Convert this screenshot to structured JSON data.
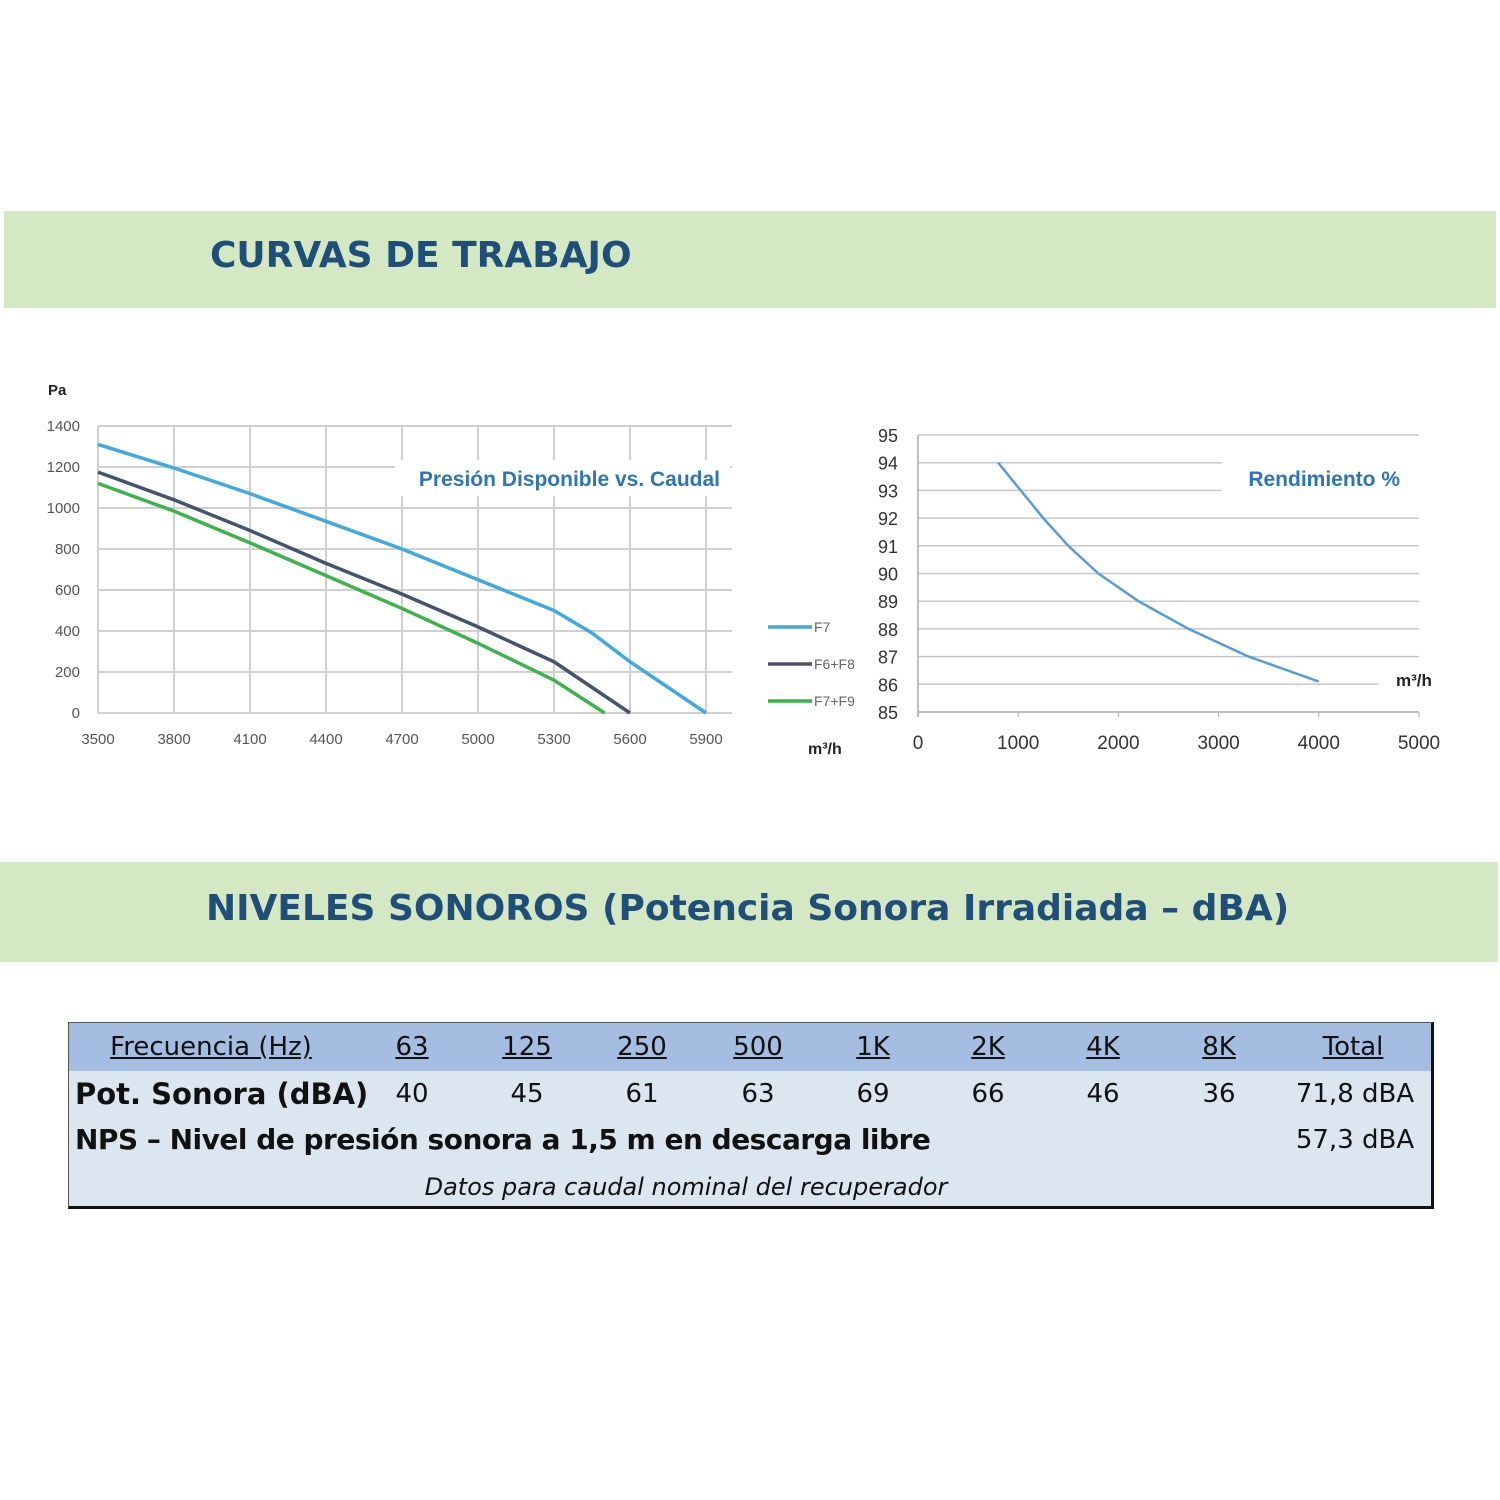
{
  "section1_title": "CURVAS DE TRABAJO",
  "section2_title": "NIVELES SONOROS (Potencia Sonora Irradiada – dBA)",
  "chart_data": [
    {
      "type": "line",
      "title": "Presión Disponible vs. Caudal",
      "ylabel": "Pa",
      "xlabel": "m³/h",
      "xlim": [
        3500,
        5900
      ],
      "ylim": [
        0,
        1400
      ],
      "xticks": [
        3500,
        3800,
        4100,
        4400,
        4700,
        5000,
        5300,
        5600,
        5900
      ],
      "yticks": [
        0,
        200,
        400,
        600,
        800,
        1000,
        1200,
        1400
      ],
      "grid": true,
      "legend": "right",
      "series": [
        {
          "name": "F7",
          "color": "#3fa9e0",
          "x": [
            3500,
            3800,
            4100,
            4400,
            4700,
            5000,
            5300,
            5450,
            5600,
            5900
          ],
          "y": [
            1310,
            1195,
            1070,
            935,
            800,
            650,
            500,
            390,
            250,
            0
          ]
        },
        {
          "name": "F6+F8",
          "color": "#44546a",
          "x": [
            3500,
            3800,
            4100,
            4400,
            4700,
            5000,
            5300,
            5600
          ],
          "y": [
            1175,
            1040,
            890,
            730,
            580,
            420,
            250,
            0
          ]
        },
        {
          "name": "F7+F9",
          "color": "#3cb44b",
          "x": [
            3500,
            3800,
            4100,
            4400,
            4700,
            5000,
            5300,
            5500
          ],
          "y": [
            1120,
            985,
            830,
            670,
            510,
            340,
            160,
            0
          ]
        }
      ]
    },
    {
      "type": "line",
      "title": "Rendimiento %",
      "xlabel": "m³/h",
      "ylabel": "",
      "xlim": [
        0,
        5000
      ],
      "ylim": [
        85,
        95
      ],
      "xticks": [
        0,
        1000,
        2000,
        3000,
        4000,
        5000
      ],
      "yticks": [
        85,
        86,
        87,
        88,
        89,
        90,
        91,
        92,
        93,
        94,
        95
      ],
      "grid": true,
      "series": [
        {
          "name": "Rendimiento",
          "color": "#5b9bd5",
          "x": [
            800,
            1250,
            1500,
            1800,
            2200,
            2700,
            3300,
            4000
          ],
          "y": [
            94,
            92,
            91,
            90,
            89,
            88,
            87,
            86.1
          ]
        }
      ]
    }
  ],
  "table": {
    "header": [
      "Frecuencia (Hz)",
      "63",
      "125",
      "250",
      "500",
      "1K",
      "2K",
      "4K",
      "8K",
      "Total"
    ],
    "row1": [
      "Pot. Sonora (dBA)",
      "40",
      "45",
      "61",
      "63",
      "69",
      "66",
      "46",
      "36",
      "71,8 dBA"
    ],
    "row2_label": "NPS – Nivel de presión sonora a 1,5 m en descarga libre",
    "row2_value": "57,3 dBA",
    "note": "Datos para caudal nominal del recuperador"
  }
}
